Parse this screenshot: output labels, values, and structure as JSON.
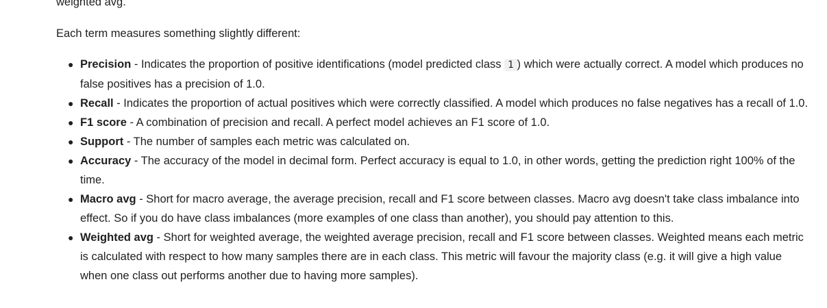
{
  "clipped_text": "weighted avg.",
  "intro": "Each term measures something slightly different:",
  "metrics": [
    {
      "term": "Precision",
      "text_before": " - Indicates the proportion of positive identifications (model predicted class ",
      "code": "1",
      "text_after": ") which were actually correct. A model which produces no false positives has a precision of 1.0."
    },
    {
      "term": "Recall",
      "text": " - Indicates the proportion of actual positives which were correctly classified. A model which produces no false negatives has a recall of 1.0."
    },
    {
      "term": "F1 score",
      "text": " - A combination of precision and recall. A perfect model achieves an F1 score of 1.0."
    },
    {
      "term": "Support",
      "text": " - The number of samples each metric was calculated on."
    },
    {
      "term": "Accuracy",
      "text": " - The accuracy of the model in decimal form. Perfect accuracy is equal to 1.0, in other words, getting the prediction right 100% of the time."
    },
    {
      "term": "Macro avg",
      "text": " - Short for macro average, the average precision, recall and F1 score between classes. Macro avg doesn't take class imbalance into effect. So if you do have class imbalances (more examples of one class than another), you should pay attention to this."
    },
    {
      "term": "Weighted avg",
      "text": " - Short for weighted average, the weighted average precision, recall and F1 score between classes. Weighted means each metric is calculated with respect to how many samples there are in each class. This metric will favour the majority class (e.g. it will give a high value when one class out performs another due to having more samples)."
    }
  ]
}
